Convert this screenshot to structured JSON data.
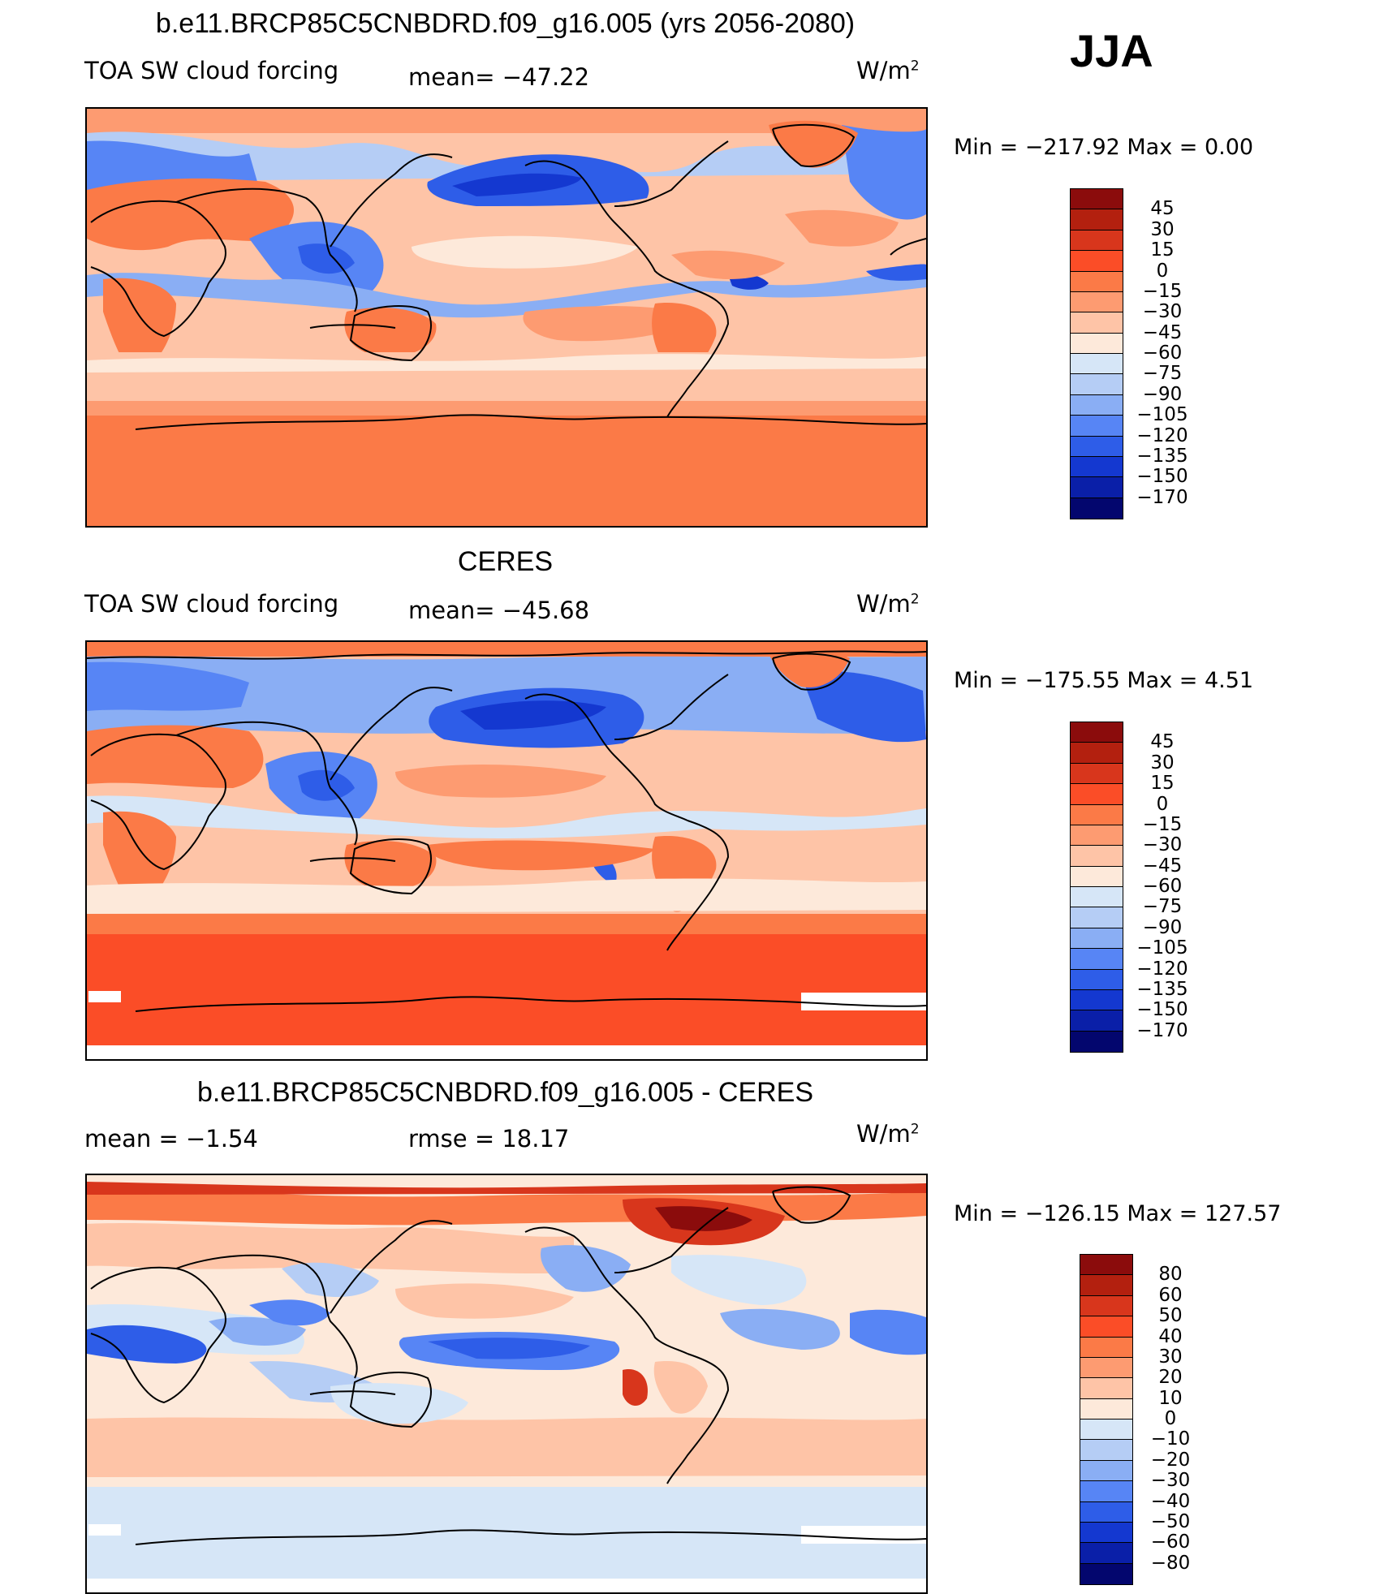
{
  "season": "JJA",
  "units": {
    "main": "W/m",
    "exp": "2"
  },
  "panels": [
    {
      "id": "model",
      "title": "b.e11.BRCP85C5CNBDRD.f09_g16.005 (yrs 2056-2080)",
      "left_label": "TOA SW cloud forcing",
      "mean_text": "mean= −47.22",
      "minmax_text": "Min  =  −217.92  Max  =      0.00",
      "colorbar": {
        "labels": [
          "45",
          "30",
          "15",
          "0",
          "−15",
          "−30",
          "−45",
          "−60",
          "−75",
          "−90",
          "−105",
          "−120",
          "−135",
          "−150",
          "−170"
        ],
        "colors": [
          "#8b0c0c",
          "#b3200f",
          "#d8361c",
          "#fb4d27",
          "#fb7a47",
          "#fd9b71",
          "#fec4a7",
          "#fde9da",
          "#d6e6f7",
          "#b5cdf5",
          "#8aaef4",
          "#5785f5",
          "#2e5de8",
          "#1438d0",
          "#0a1fa8",
          "#03066e"
        ]
      }
    },
    {
      "id": "obs",
      "title": "CERES",
      "left_label": "TOA SW cloud forcing",
      "mean_text": "mean= −45.68",
      "minmax_text": "Min  =  −175.55  Max  =      4.51",
      "colorbar": {
        "labels": [
          "45",
          "30",
          "15",
          "0",
          "−15",
          "−30",
          "−45",
          "−60",
          "−75",
          "−90",
          "−105",
          "−120",
          "−135",
          "−150",
          "−170"
        ],
        "colors": [
          "#8b0c0c",
          "#b3200f",
          "#d8361c",
          "#fb4d27",
          "#fb7a47",
          "#fd9b71",
          "#fec4a7",
          "#fde9da",
          "#d6e6f7",
          "#b5cdf5",
          "#8aaef4",
          "#5785f5",
          "#2e5de8",
          "#1438d0",
          "#0a1fa8",
          "#03066e"
        ]
      }
    },
    {
      "id": "diff",
      "title": "b.e11.BRCP85C5CNBDRD.f09_g16.005 - CERES",
      "left_label": "mean =   −1.54",
      "mean_text": "rmse =   18.17",
      "minmax_text": "Min  =  −126.15  Max  =  127.57",
      "colorbar": {
        "labels": [
          "80",
          "60",
          "50",
          "40",
          "30",
          "20",
          "10",
          "0",
          "−10",
          "−20",
          "−30",
          "−40",
          "−50",
          "−60",
          "−80"
        ],
        "colors": [
          "#8b0c0c",
          "#b3200f",
          "#d8361c",
          "#fb4d27",
          "#fb7a47",
          "#fd9b71",
          "#fec4a7",
          "#fde9da",
          "#d6e6f7",
          "#b5cdf5",
          "#8aaef4",
          "#5785f5",
          "#2e5de8",
          "#1438d0",
          "#0a1fa8",
          "#03066e"
        ]
      }
    }
  ]
}
